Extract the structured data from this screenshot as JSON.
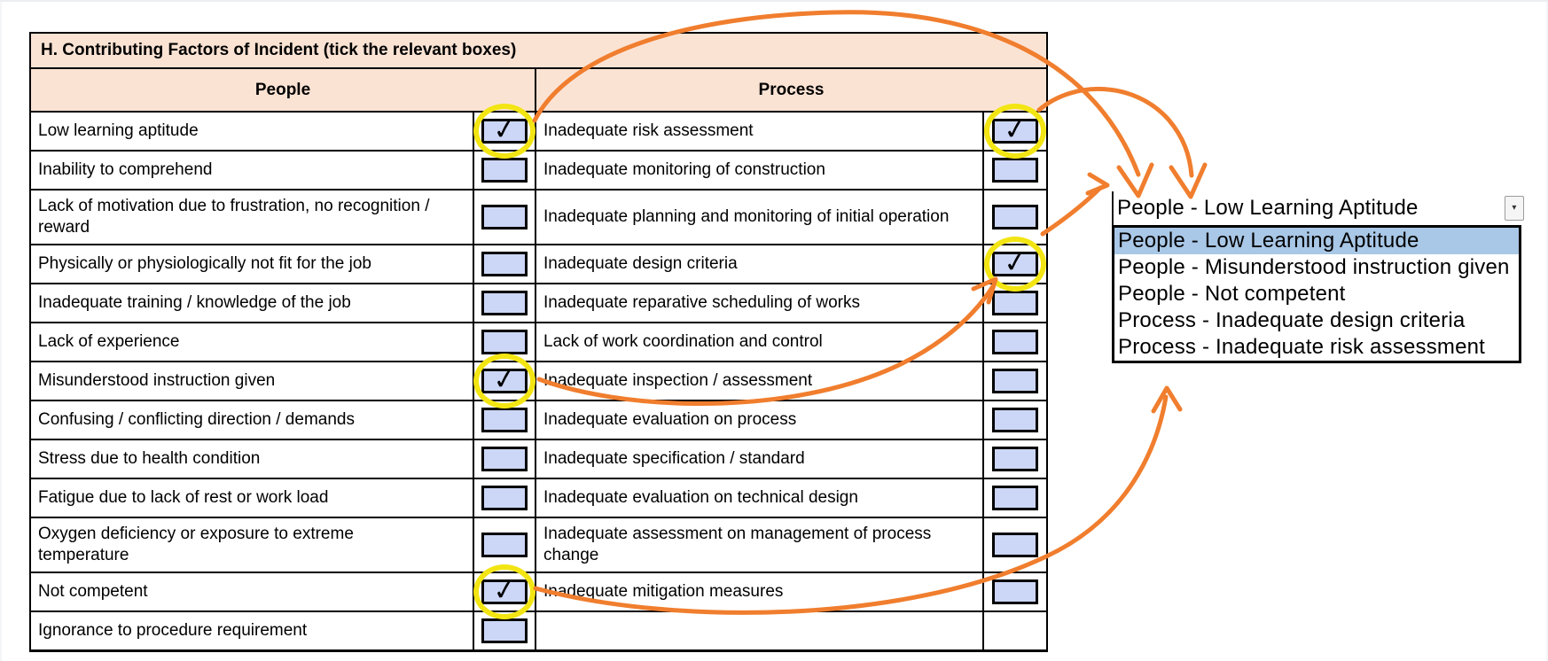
{
  "table": {
    "title": "H. Contributing Factors of Incident (tick the relevant boxes)",
    "headers": {
      "people": "People",
      "process": "Process"
    },
    "rows": [
      {
        "people": {
          "label": "Low learning aptitude",
          "checked": true,
          "circled": true
        },
        "process": {
          "label": "Inadequate risk assessment",
          "checked": true,
          "circled": true
        }
      },
      {
        "people": {
          "label": "Inability to comprehend",
          "checked": false
        },
        "process": {
          "label": "Inadequate monitoring of construction",
          "checked": false
        }
      },
      {
        "tall": true,
        "people": {
          "label": "Lack of motivation due to frustration, no recognition / reward",
          "checked": false
        },
        "process": {
          "label": "Inadequate planning and monitoring of initial operation",
          "checked": false
        }
      },
      {
        "people": {
          "label": "Physically or physiologically not fit for the job",
          "checked": false
        },
        "process": {
          "label": "Inadequate design criteria",
          "checked": true,
          "circled": true
        }
      },
      {
        "people": {
          "label": "Inadequate training / knowledge of the job",
          "checked": false
        },
        "process": {
          "label": "Inadequate reparative scheduling of works",
          "checked": false
        }
      },
      {
        "people": {
          "label": "Lack of experience",
          "checked": false
        },
        "process": {
          "label": "Lack of work coordination and control",
          "checked": false
        }
      },
      {
        "people": {
          "label": "Misunderstood instruction given",
          "checked": true,
          "circled": true
        },
        "process": {
          "label": "Inadequate inspection / assessment",
          "checked": false
        }
      },
      {
        "people": {
          "label": "Confusing / conflicting direction / demands",
          "checked": false
        },
        "process": {
          "label": "Inadequate evaluation on process",
          "checked": false
        }
      },
      {
        "people": {
          "label": "Stress due to health condition",
          "checked": false
        },
        "process": {
          "label": "Inadequate specification / standard",
          "checked": false
        }
      },
      {
        "people": {
          "label": "Fatigue due to lack of rest or work load",
          "checked": false
        },
        "process": {
          "label": "Inadequate evaluation on technical design",
          "checked": false
        }
      },
      {
        "tall": true,
        "people": {
          "label": "Oxygen deficiency or exposure to extreme temperature",
          "checked": false
        },
        "process": {
          "label": "Inadequate assessment on management of process change",
          "checked": false
        }
      },
      {
        "people": {
          "label": "Not competent",
          "checked": true,
          "circled": true
        },
        "process": {
          "label": "Inadequate mitigation measures",
          "checked": false
        }
      },
      {
        "people": {
          "label": "Ignorance to procedure requirement",
          "checked": false
        },
        "process": null
      }
    ]
  },
  "dropdown": {
    "value": "People - Low Learning Aptitude",
    "selected_index": 0,
    "items": [
      "People - Low Learning Aptitude",
      "People - Misunderstood instruction given",
      "People - Not competent",
      "Process - Inadequate design criteria",
      "Process - Inadequate risk assessment"
    ],
    "button_icon": "▾"
  },
  "icons": {
    "checkmark": "✓"
  },
  "colors": {
    "header_fill": "#fbe3d4",
    "checkbox_fill": "#ccd6f6",
    "highlight_circle": "#f2e513",
    "arrow": "#f07e2e",
    "selected_item_fill": "#a9c7e6"
  }
}
